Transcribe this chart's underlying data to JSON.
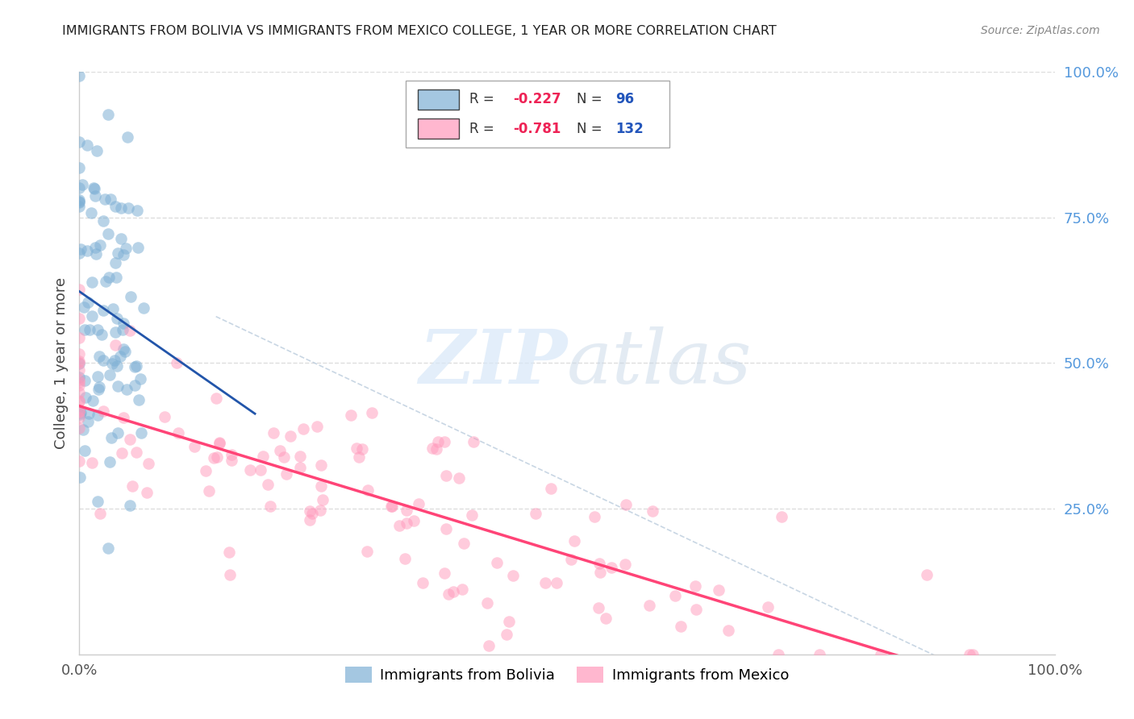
{
  "title": "IMMIGRANTS FROM BOLIVIA VS IMMIGRANTS FROM MEXICO COLLEGE, 1 YEAR OR MORE CORRELATION CHART",
  "source": "Source: ZipAtlas.com",
  "ylabel": "College, 1 year or more",
  "bolivia_R": -0.227,
  "bolivia_N": 96,
  "mexico_R": -0.781,
  "mexico_N": 132,
  "bolivia_color": "#7EB0D5",
  "mexico_color": "#FF99BB",
  "bolivia_line_color": "#2255AA",
  "mexico_line_color": "#FF4477",
  "background_color": "#FFFFFF",
  "grid_color": "#DDDDDD",
  "legend_label_bolivia": "Immigrants from Bolivia",
  "legend_label_mexico": "Immigrants from Mexico",
  "title_color": "#222222",
  "source_color": "#888888",
  "right_axis_color": "#5599DD",
  "seed": 7
}
